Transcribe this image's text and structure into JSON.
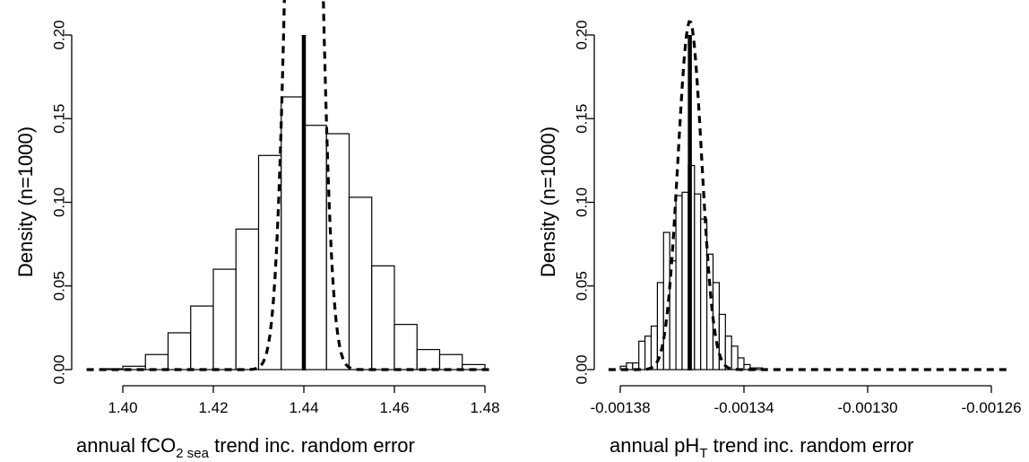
{
  "chart_data": [
    {
      "type": "bar",
      "subtype": "histogram",
      "xlabel": "annual fCO2 sea trend inc. random error",
      "xlabel_parts": {
        "pre": "annual fCO",
        "sub": "2 sea",
        "post": " trend inc. random error"
      },
      "ylabel": "Density (n=1000)",
      "xlim": [
        1.392,
        1.482
      ],
      "ylim": [
        0,
        0.2
      ],
      "xticks": [
        1.4,
        1.42,
        1.44,
        1.46,
        1.48
      ],
      "xtick_labels": [
        "1.40",
        "1.42",
        "1.44",
        "1.46",
        "1.48"
      ],
      "yticks": [
        0,
        0.05,
        0.1,
        0.15,
        0.2
      ],
      "ytick_labels": [
        "0.00",
        "0.05",
        "0.10",
        "0.15",
        "0.20"
      ],
      "bin_width": 0.005,
      "bins": [
        {
          "x0": 1.395,
          "x1": 1.4,
          "density": 0.0005
        },
        {
          "x0": 1.4,
          "x1": 1.405,
          "density": 0.002
        },
        {
          "x0": 1.405,
          "x1": 1.41,
          "density": 0.009
        },
        {
          "x0": 1.41,
          "x1": 1.415,
          "density": 0.022
        },
        {
          "x0": 1.415,
          "x1": 1.42,
          "density": 0.038
        },
        {
          "x0": 1.42,
          "x1": 1.425,
          "density": 0.06
        },
        {
          "x0": 1.425,
          "x1": 1.43,
          "density": 0.084
        },
        {
          "x0": 1.43,
          "x1": 1.435,
          "density": 0.128
        },
        {
          "x0": 1.435,
          "x1": 1.44,
          "density": 0.163
        },
        {
          "x0": 1.44,
          "x1": 1.445,
          "density": 0.146
        },
        {
          "x0": 1.445,
          "x1": 1.45,
          "density": 0.141
        },
        {
          "x0": 1.45,
          "x1": 1.455,
          "density": 0.103
        },
        {
          "x0": 1.455,
          "x1": 1.46,
          "density": 0.062
        },
        {
          "x0": 1.46,
          "x1": 1.465,
          "density": 0.027
        },
        {
          "x0": 1.465,
          "x1": 1.47,
          "density": 0.012
        },
        {
          "x0": 1.47,
          "x1": 1.475,
          "density": 0.009
        },
        {
          "x0": 1.475,
          "x1": 1.48,
          "density": 0.003
        }
      ],
      "normal_curve": {
        "mean": 1.44,
        "sd": 0.00282,
        "style": "dashed"
      },
      "reference_line": {
        "x": 1.44,
        "y_top": 0.2
      },
      "grid": false,
      "legend": "none"
    },
    {
      "type": "bar",
      "subtype": "histogram",
      "xlabel": "annual pHT trend inc. random error",
      "xlabel_parts": {
        "pre": "annual pH",
        "sub": "T",
        "post": " trend inc. random error"
      },
      "ylabel": "Density (n=1000)",
      "xlim": [
        -0.0013838,
        -0.0012535
      ],
      "ylim": [
        0,
        0.2
      ],
      "xticks": [
        -0.00138,
        -0.00134,
        -0.0013,
        -0.00126
      ],
      "xtick_labels": [
        "-0.00138",
        "-0.00134",
        "-0.00130",
        "-0.00126"
      ],
      "yticks": [
        0,
        0.05,
        0.1,
        0.15,
        0.2
      ],
      "ytick_labels": [
        "0.00",
        "0.05",
        "0.10",
        "0.15",
        "0.20"
      ],
      "bin_width": 2e-06,
      "bins": [
        {
          "x0": -0.00138,
          "x1": -0.001378,
          "density": 0.002
        },
        {
          "x0": -0.001378,
          "x1": -0.001376,
          "density": 0.004
        },
        {
          "x0": -0.001376,
          "x1": -0.001374,
          "density": 0.004
        },
        {
          "x0": -0.001374,
          "x1": -0.001372,
          "density": 0.017
        },
        {
          "x0": -0.001372,
          "x1": -0.00137,
          "density": 0.02
        },
        {
          "x0": -0.00137,
          "x1": -0.001368,
          "density": 0.026
        },
        {
          "x0": -0.001368,
          "x1": -0.001366,
          "density": 0.052
        },
        {
          "x0": -0.001366,
          "x1": -0.001364,
          "density": 0.082
        },
        {
          "x0": -0.001364,
          "x1": -0.001362,
          "density": 0.065
        },
        {
          "x0": -0.001362,
          "x1": -0.00136,
          "density": 0.104
        },
        {
          "x0": -0.00136,
          "x1": -0.001358,
          "density": 0.106
        },
        {
          "x0": -0.001358,
          "x1": -0.001356,
          "density": 0.122
        },
        {
          "x0": -0.001356,
          "x1": -0.001354,
          "density": 0.105
        },
        {
          "x0": -0.001354,
          "x1": -0.001352,
          "density": 0.09
        },
        {
          "x0": -0.001352,
          "x1": -0.00135,
          "density": 0.069
        },
        {
          "x0": -0.00135,
          "x1": -0.001348,
          "density": 0.052
        },
        {
          "x0": -0.001348,
          "x1": -0.001346,
          "density": 0.033
        },
        {
          "x0": -0.001346,
          "x1": -0.001344,
          "density": 0.02
        },
        {
          "x0": -0.001344,
          "x1": -0.001342,
          "density": 0.014
        },
        {
          "x0": -0.001342,
          "x1": -0.00134,
          "density": 0.007
        },
        {
          "x0": -0.00134,
          "x1": -0.001338,
          "density": 0.003
        },
        {
          "x0": -0.001338,
          "x1": -0.001336,
          "density": 0.001
        },
        {
          "x0": -0.001336,
          "x1": -0.001334,
          "density": 0.001
        }
      ],
      "normal_curve": {
        "mean": -0.0013575,
        "sd": 3.83e-06,
        "style": "dashed"
      },
      "reference_line": {
        "x": -0.0013575,
        "y_top": 0.2
      },
      "grid": false,
      "legend": "none"
    }
  ]
}
